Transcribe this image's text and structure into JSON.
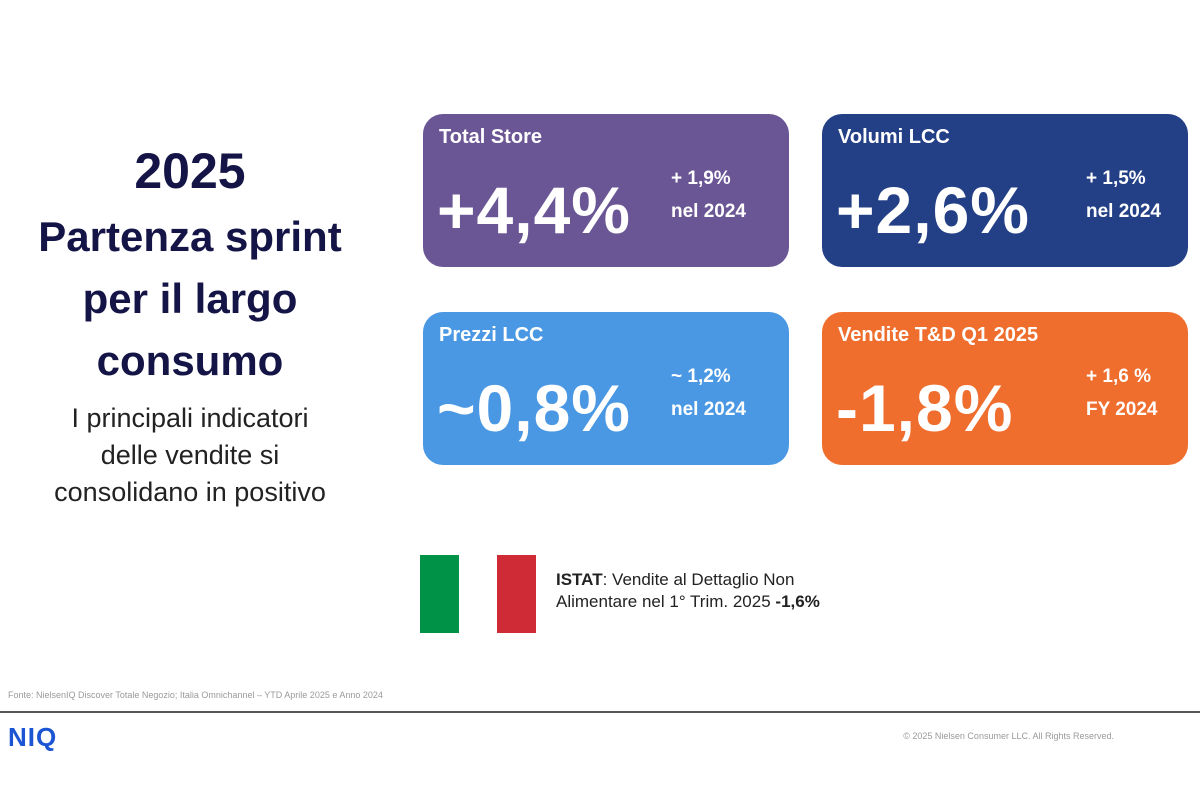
{
  "left": {
    "year": "2025",
    "headline_lines": [
      "Partenza sprint",
      "per il largo",
      "consumo"
    ],
    "sub_lines": [
      "I principali indicatori",
      "delle vendite si",
      "consolidano in positivo"
    ]
  },
  "cards": {
    "total_store": {
      "title": "Total Store",
      "value": "+4,4%",
      "note_line1": "+ 1,9%",
      "note_line2": "nel 2024",
      "color": "#6a5694"
    },
    "volumi": {
      "title": "Volumi LCC",
      "value": "+2,6%",
      "note_line1": "+ 1,5%",
      "note_line2": "nel 2024",
      "color": "#233f86"
    },
    "prezzi": {
      "title": "Prezzi LCC",
      "value": "~0,8%",
      "note_line1": "~ 1,2%",
      "note_line2": "nel 2024",
      "color": "#4a98e3"
    },
    "vendite": {
      "title": "Vendite T&D Q1 2025",
      "value": "-1,8%",
      "note_line1": "+ 1,6 %",
      "note_line2": "FY 2024",
      "color": "#ef6d2d"
    }
  },
  "flag": {
    "green": "#009246",
    "white": "#ffffff",
    "red": "#ce2b37"
  },
  "istat": {
    "label": "ISTAT",
    "text_line1": ": Vendite al Dettaglio Non",
    "text_line2": "Alimentare nel 1° Trim. 2025 ",
    "value": "-1,6%"
  },
  "footer": {
    "source": "Fonte: NielsenIQ Discover Totale Negozio; Italia Omnichannel – YTD  Aprile 2025 e Anno 2024",
    "logo": "NIQ",
    "copyright": "© 2025 Nielsen Consumer LLC. All Rights Reserved."
  }
}
